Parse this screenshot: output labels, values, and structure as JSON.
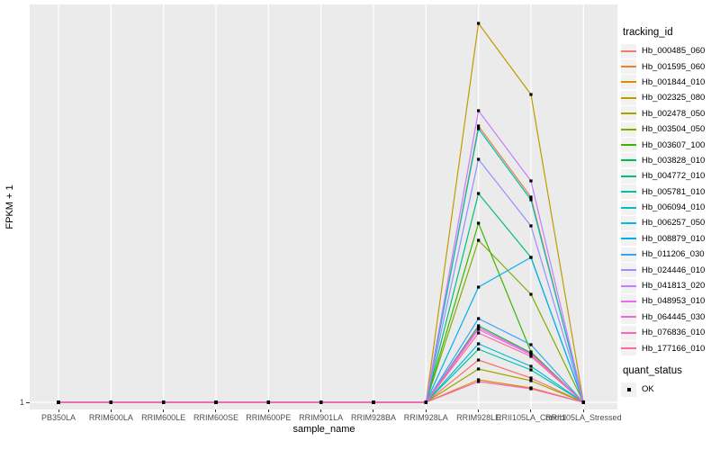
{
  "chart_data": {
    "type": "line",
    "title": "",
    "xlabel": "sample_name",
    "ylabel": "FPKM + 1",
    "y_tick_labels": [
      "1"
    ],
    "ylim": [
      1,
      443
    ],
    "grid": "major-only-white-on-gray",
    "legend_position": "right",
    "categories": [
      "PB350LA",
      "RRIM600LA",
      "RRIM600LE",
      "RRIM600SE",
      "RRIM600PE",
      "RRIM901LA",
      "RRIM928BA",
      "RRIM928LA",
      "RRIM928LE",
      "RRII105LA_Control",
      "RRII105LA_Stressed"
    ],
    "legend": {
      "title": "tracking_id"
    },
    "quant_legend": {
      "title": "quant_status",
      "items": [
        "OK"
      ]
    },
    "colors": {
      "panel_bg": "#EBEBEB",
      "grid": "#FFFFFF",
      "point": "#000000",
      "axis_text": "#4D4D4D",
      "axis_title": "#000000",
      "legend_key_bg": "#F2F2F2"
    },
    "series": [
      {
        "name": "Hb_000485_060",
        "color": "#F8766D",
        "values": [
          1,
          1,
          1,
          1,
          1,
          1,
          1,
          1,
          48,
          28,
          1
        ]
      },
      {
        "name": "Hb_001595_060",
        "color": "#EA8331",
        "values": [
          1,
          1,
          1,
          1,
          1,
          1,
          1,
          1,
          308,
          229,
          1
        ]
      },
      {
        "name": "Hb_001844_010",
        "color": "#D89000",
        "values": [
          1,
          1,
          1,
          1,
          1,
          1,
          1,
          1,
          26,
          17,
          1
        ]
      },
      {
        "name": "Hb_002325_080",
        "color": "#C09B00",
        "values": [
          1,
          1,
          1,
          1,
          1,
          1,
          1,
          1,
          422,
          343,
          1
        ]
      },
      {
        "name": "Hb_002478_050",
        "color": "#A3A500",
        "values": [
          1,
          1,
          1,
          1,
          1,
          1,
          1,
          1,
          38,
          25,
          1
        ]
      },
      {
        "name": "Hb_003504_050",
        "color": "#7CAE00",
        "values": [
          1,
          1,
          1,
          1,
          1,
          1,
          1,
          1,
          181,
          121,
          1
        ]
      },
      {
        "name": "Hb_003607_100",
        "color": "#39B600",
        "values": [
          1,
          1,
          1,
          1,
          1,
          1,
          1,
          1,
          200,
          57,
          1
        ]
      },
      {
        "name": "Hb_003828_010",
        "color": "#00BB4E",
        "values": [
          1,
          1,
          1,
          1,
          1,
          1,
          1,
          1,
          86,
          56,
          1
        ]
      },
      {
        "name": "Hb_004772_010",
        "color": "#00BF7D",
        "values": [
          1,
          1,
          1,
          1,
          1,
          1,
          1,
          1,
          233,
          162,
          1
        ]
      },
      {
        "name": "Hb_005781_010",
        "color": "#00C1A3",
        "values": [
          1,
          1,
          1,
          1,
          1,
          1,
          1,
          1,
          60,
          37,
          1
        ]
      },
      {
        "name": "Hb_006094_010",
        "color": "#00BFC4",
        "values": [
          1,
          1,
          1,
          1,
          1,
          1,
          1,
          1,
          305,
          226,
          1
        ]
      },
      {
        "name": "Hb_006257_050",
        "color": "#00BAE0",
        "values": [
          1,
          1,
          1,
          1,
          1,
          1,
          1,
          1,
          66,
          41,
          1
        ]
      },
      {
        "name": "Hb_008879_010",
        "color": "#00B0F6",
        "values": [
          1,
          1,
          1,
          1,
          1,
          1,
          1,
          1,
          129,
          162,
          1
        ]
      },
      {
        "name": "Hb_011206_030",
        "color": "#35A2FF",
        "values": [
          1,
          1,
          1,
          1,
          1,
          1,
          1,
          1,
          94,
          65,
          1
        ]
      },
      {
        "name": "Hb_024446_010",
        "color": "#9590FF",
        "values": [
          1,
          1,
          1,
          1,
          1,
          1,
          1,
          1,
          271,
          197,
          1
        ]
      },
      {
        "name": "Hb_041813_020",
        "color": "#C77CFF",
        "values": [
          1,
          1,
          1,
          1,
          1,
          1,
          1,
          1,
          325,
          247,
          1
        ]
      },
      {
        "name": "Hb_048953_010",
        "color": "#E76BF3",
        "values": [
          1,
          1,
          1,
          1,
          1,
          1,
          1,
          1,
          82,
          54,
          1
        ]
      },
      {
        "name": "Hb_064445_030",
        "color": "#FA62DB",
        "values": [
          1,
          1,
          1,
          1,
          1,
          1,
          1,
          1,
          84,
          55,
          1
        ]
      },
      {
        "name": "Hb_076836_010",
        "color": "#FF62BC",
        "values": [
          1,
          1,
          1,
          1,
          1,
          1,
          1,
          1,
          24,
          16,
          1
        ]
      },
      {
        "name": "Hb_177166_010",
        "color": "#FF6A98",
        "values": [
          1,
          1,
          1,
          1,
          1,
          1,
          1,
          1,
          78,
          52,
          1
        ]
      }
    ]
  }
}
